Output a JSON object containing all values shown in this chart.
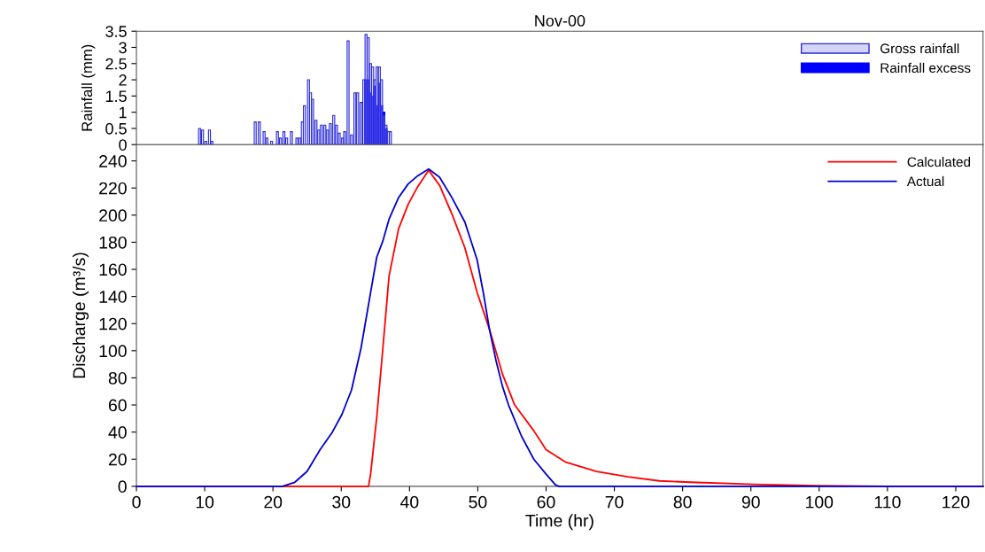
{
  "chart_data": [
    {
      "type": "bar",
      "title": "Nov-00",
      "ylabel": "Rainfall (mm)",
      "xlim": [
        0,
        124
      ],
      "ylim": [
        0,
        3.5
      ],
      "yticks": [
        0,
        0.5,
        1,
        1.5,
        2,
        2.5,
        3,
        3.5
      ],
      "tick_labels": "y",
      "legend": "top right",
      "grid": false,
      "series": [
        {
          "name": "Gross rainfall",
          "color": "#d4d4f6",
          "x": [
            9.24,
            9.68,
            10.15,
            10.7,
            11.06,
            17.4,
            18.0,
            18.7,
            19.1,
            19.8,
            20.65,
            21.1,
            21.6,
            22.0,
            22.7,
            23.5,
            23.9,
            24.3,
            24.6,
            25.2,
            25.5,
            25.8,
            26.3,
            26.7,
            27.1,
            27.6,
            28.0,
            28.4,
            28.9,
            29.3,
            29.7,
            30.2,
            30.5,
            31.0,
            31.5,
            32.0,
            32.4,
            32.9,
            33.3,
            33.63,
            33.95,
            34.28,
            34.6,
            34.93,
            35.25,
            35.58,
            35.9,
            36.23,
            36.55,
            36.88,
            37.2
          ],
          "values": [
            0.5,
            0.45,
            0.1,
            0.45,
            0.1,
            0.7,
            0.7,
            0.4,
            0.2,
            0.1,
            0.4,
            0.2,
            0.4,
            0.2,
            0.4,
            0.2,
            0.2,
            0.7,
            1.2,
            2.0,
            1.6,
            1.4,
            0.75,
            0.45,
            0.6,
            0.6,
            0.45,
            0.65,
            0.9,
            0.6,
            0.35,
            0.2,
            0.4,
            3.2,
            0.3,
            1.6,
            1.6,
            1.3,
            2.0,
            3.4,
            3.3,
            2.5,
            2.4,
            2.0,
            2.4,
            2.4,
            2.0,
            0.9,
            0.6,
            0.4,
            0.4
          ]
        },
        {
          "name": "Rainfall excess",
          "color": "#0000ff",
          "x": [
            33.63,
            33.95,
            34.28,
            34.6,
            34.93,
            35.25,
            35.58,
            35.9,
            36.23,
            36.55
          ],
          "values": [
            2.0,
            2.0,
            1.6,
            1.5,
            1.8,
            1.2,
            1.9,
            1.2,
            1.0,
            0.5
          ]
        }
      ]
    },
    {
      "type": "line",
      "xlabel": "Time (hr)",
      "ylabel": "Discharge (m³/s)",
      "xlim": [
        0,
        124
      ],
      "ylim": [
        0,
        252
      ],
      "xticks": [
        0,
        10,
        20,
        30,
        40,
        50,
        60,
        70,
        80,
        90,
        100,
        110,
        120
      ],
      "yticks": [
        0,
        20,
        40,
        60,
        80,
        100,
        120,
        140,
        160,
        180,
        200,
        220,
        240
      ],
      "legend": "top right",
      "grid": false,
      "series": [
        {
          "name": "Calculated",
          "color": "#ff0000",
          "x": [
            0,
            34.0,
            34.3,
            35.2,
            36.1,
            37.0,
            38.4,
            39.8,
            41.2,
            42.8,
            44.4,
            46.2,
            48.1,
            49.9,
            51.7,
            53.6,
            55.4,
            58.2,
            60.0,
            62.8,
            67.4,
            72.0,
            76.6,
            81.2,
            90.4,
            99.6,
            110,
            124
          ],
          "values": [
            0,
            0,
            9,
            51,
            102,
            155,
            190,
            208,
            221,
            233,
            222,
            201,
            176,
            143,
            116,
            83,
            60,
            41,
            27,
            18,
            11,
            7,
            4,
            3,
            1.5,
            0.5,
            0,
            0
          ]
        },
        {
          "name": "Actual",
          "color": "#0000cc",
          "x": [
            0,
            21.4,
            23.2,
            25.0,
            26.9,
            28.7,
            30.1,
            31.5,
            32.9,
            34.3,
            35.2,
            36.1,
            37.0,
            38.4,
            39.8,
            41.2,
            42.8,
            44.4,
            46.2,
            48.1,
            49.9,
            50.8,
            51.7,
            52.7,
            53.6,
            54.5,
            56.4,
            58.2,
            60.0,
            61.4,
            61.9,
            124
          ],
          "values": [
            0,
            0,
            3,
            11,
            27,
            40,
            53,
            71,
            102,
            143,
            169,
            181,
            197,
            213,
            223,
            229,
            234,
            228,
            213,
            195,
            167,
            143,
            116,
            92,
            74,
            60,
            37,
            20,
            9,
            1,
            0,
            0
          ]
        }
      ]
    }
  ]
}
